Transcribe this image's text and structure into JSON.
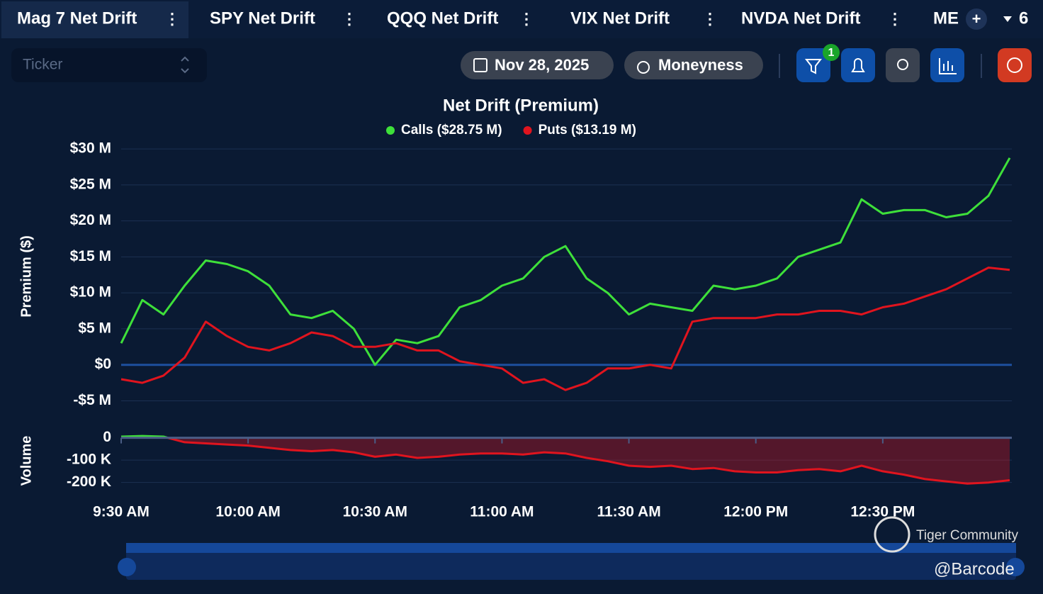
{
  "tabs": [
    "Mag 7 Net Drift",
    "SPY Net Drift",
    "QQQ Net Drift",
    "VIX Net Drift",
    "NVDA Net Drift",
    "ME"
  ],
  "tab_count": "6",
  "ticker_placeholder": "Ticker",
  "date": "Nov 28, 2025",
  "moneyness": "Moneyness",
  "filter_badge": "1",
  "watermark": "Tiger Community",
  "credit": "@Barcode",
  "chart_data": [
    {
      "type": "line",
      "title": "Net Drift (Premium)",
      "y_label": "Premium ($)",
      "x": [
        "9:30 AM",
        "9:35 AM",
        "9:40 AM",
        "9:45 AM",
        "9:50 AM",
        "9:55 AM",
        "10:00 AM",
        "10:05 AM",
        "10:10 AM",
        "10:15 AM",
        "10:20 AM",
        "10:25 AM",
        "10:30 AM",
        "10:35 AM",
        "10:40 AM",
        "10:45 AM",
        "10:50 AM",
        "10:55 AM",
        "11:00 AM",
        "11:05 AM",
        "11:10 AM",
        "11:15 AM",
        "11:20 AM",
        "11:25 AM",
        "11:30 AM",
        "11:35 AM",
        "11:40 AM",
        "11:45 AM",
        "11:50 AM",
        "11:55 AM",
        "12:00 PM",
        "12:05 PM",
        "12:10 PM",
        "12:15 PM",
        "12:20 PM",
        "12:25 PM",
        "12:30 PM",
        "12:35 PM",
        "12:40 PM",
        "12:45 PM",
        "12:50 PM",
        "12:55 PM",
        "1:00 PM"
      ],
      "series": [
        {
          "name": "Calls ($28.75 M)",
          "color": "#3ee03a",
          "values": [
            3,
            9,
            7,
            11,
            14.5,
            14,
            13,
            11,
            7,
            6.5,
            7.5,
            5,
            0,
            3.5,
            3,
            4,
            8,
            9,
            11,
            12,
            15,
            16.5,
            12,
            10,
            7,
            8.5,
            8,
            7.5,
            11,
            10.5,
            11,
            12,
            15,
            16,
            17,
            23,
            21,
            21.5,
            21.5,
            20.5,
            21,
            23.5,
            28.75
          ]
        },
        {
          "name": "Puts ($13.19 M)",
          "color": "#e0141e",
          "values": [
            -2,
            -2.5,
            -1.5,
            1,
            6,
            4,
            2.5,
            2,
            3,
            4.5,
            4,
            2.5,
            2.5,
            3,
            2,
            2,
            0.5,
            0,
            -0.5,
            -2.5,
            -2,
            -3.5,
            -2.5,
            -0.5,
            -0.5,
            0,
            -0.5,
            6,
            6.5,
            6.5,
            6.5,
            7,
            7,
            7.5,
            7.5,
            7,
            8,
            8.5,
            9.5,
            10.5,
            12,
            13.5,
            13.19
          ]
        }
      ],
      "ylim": [
        -8.5,
        30.5
      ],
      "yticks": [
        {
          "value": 30,
          "label": "$30 M"
        },
        {
          "value": 25,
          "label": "$25 M"
        },
        {
          "value": 20,
          "label": "$20 M"
        },
        {
          "value": 15,
          "label": "$15 M"
        },
        {
          "value": 10,
          "label": "$10 M"
        },
        {
          "value": 5,
          "label": "$5 M"
        },
        {
          "value": 0,
          "label": "$0"
        },
        {
          "value": -5,
          "label": "-$5 M"
        }
      ],
      "grid": true
    },
    {
      "type": "area",
      "y_label": "Volume",
      "x": [
        "9:30 AM",
        "9:35 AM",
        "9:40 AM",
        "9:45 AM",
        "9:50 AM",
        "9:55 AM",
        "10:00 AM",
        "10:05 AM",
        "10:10 AM",
        "10:15 AM",
        "10:20 AM",
        "10:25 AM",
        "10:30 AM",
        "10:35 AM",
        "10:40 AM",
        "10:45 AM",
        "10:50 AM",
        "10:55 AM",
        "11:00 AM",
        "11:05 AM",
        "11:10 AM",
        "11:15 AM",
        "11:20 AM",
        "11:25 AM",
        "11:30 AM",
        "11:35 AM",
        "11:40 AM",
        "11:45 AM",
        "11:50 AM",
        "11:55 AM",
        "12:00 PM",
        "12:05 PM",
        "12:10 PM",
        "12:15 PM",
        "12:20 PM",
        "12:25 PM",
        "12:30 PM",
        "12:35 PM",
        "12:40 PM",
        "12:45 PM",
        "12:50 PM",
        "12:55 PM",
        "1:00 PM"
      ],
      "values": [
        5,
        8,
        5,
        -20,
        -25,
        -30,
        -35,
        -45,
        -55,
        -60,
        -55,
        -65,
        -85,
        -75,
        -90,
        -85,
        -75,
        -70,
        -70,
        -75,
        -65,
        -70,
        -90,
        -105,
        -125,
        -130,
        -125,
        -140,
        -135,
        -150,
        -155,
        -155,
        -145,
        -140,
        -150,
        -125,
        -150,
        -165,
        -185,
        -195,
        -205,
        -200,
        -190
      ],
      "positive_color": "#3ee03a",
      "color": "#e0141e",
      "ylim": [
        -255,
        40
      ],
      "yticks": [
        0,
        {
          "value": -100,
          "label": "-100 K"
        },
        {
          "value": -200,
          "label": "-200 K"
        }
      ],
      "xticks": [
        "9:30 AM",
        "10:00 AM",
        "10:30 AM",
        "11:00 AM",
        "11:30 AM",
        "12:00 PM",
        "12:30 PM"
      ],
      "grid": true
    }
  ]
}
